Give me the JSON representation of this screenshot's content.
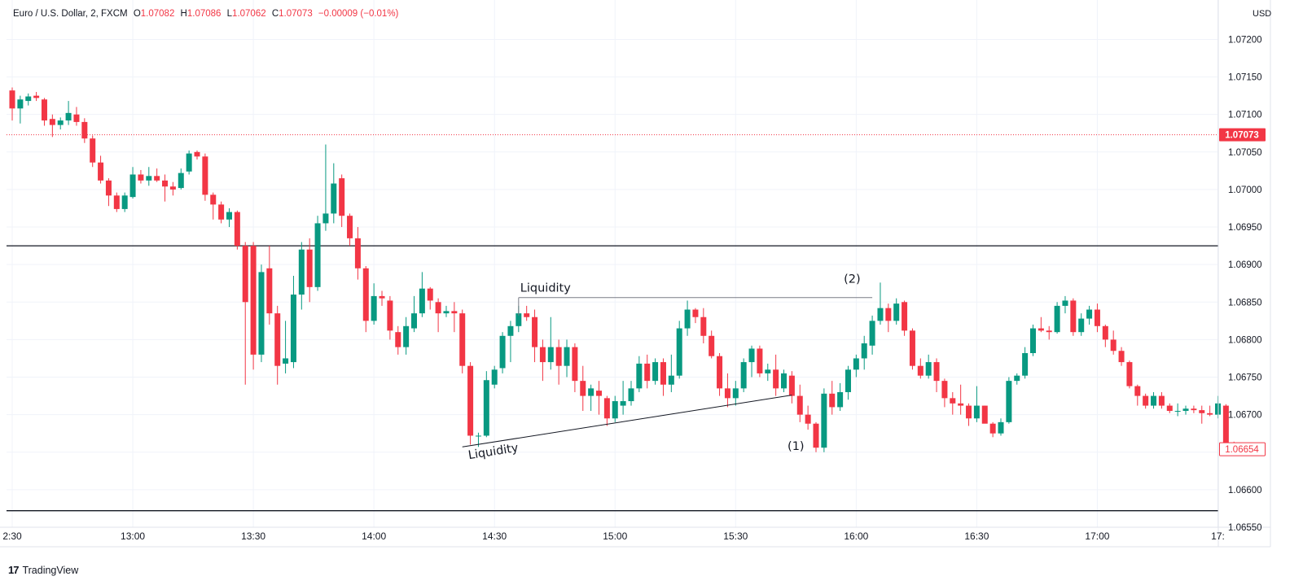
{
  "legend": {
    "title": "Euro / U.S. Dollar, 2, FXCM",
    "open_label": "O",
    "open": "1.07082",
    "high_label": "H",
    "high": "1.07086",
    "low_label": "L",
    "low": "1.07062",
    "close_label": "C",
    "close": "1.07073",
    "change": "−0.00009 (−0.01%)"
  },
  "currency": "USD",
  "branding": "TradingView",
  "colors": {
    "up": "#089981",
    "down": "#f23645",
    "grid": "#f0f3fa",
    "line": "#131722"
  },
  "chart_data": {
    "type": "candlestick",
    "symbol": "Euro / U.S. Dollar, 2, FXCM",
    "ylim": [
      1.0655,
      1.0722
    ],
    "y_ticks": [
      "1.07200",
      "1.07150",
      "1.07100",
      "1.07050",
      "1.07000",
      "1.06950",
      "1.06900",
      "1.06850",
      "1.06800",
      "1.06750",
      "1.06700",
      "1.06650",
      "1.06600",
      "1.06550"
    ],
    "x_ticks": [
      {
        "label": "2:30",
        "i": 0
      },
      {
        "label": "13:00",
        "i": 15
      },
      {
        "label": "13:30",
        "i": 30
      },
      {
        "label": "14:00",
        "i": 45
      },
      {
        "label": "14:30",
        "i": 60
      },
      {
        "label": "15:00",
        "i": 75
      },
      {
        "label": "15:30",
        "i": 90
      },
      {
        "label": "16:00",
        "i": 105
      },
      {
        "label": "16:30",
        "i": 120
      },
      {
        "label": "17:00",
        "i": 135
      },
      {
        "label": "17:",
        "i": 150
      }
    ],
    "price_labels": [
      {
        "value": 1.07073,
        "text": "1.07073",
        "style": "filled"
      },
      {
        "value": 1.06654,
        "text": "1.06654",
        "style": "outline"
      }
    ],
    "horizontal_lines": [
      1.06925,
      1.06572
    ],
    "current_price_line": 1.07073,
    "annotations": [
      {
        "text": "Liquidity",
        "type": "horizontal-line",
        "price": 1.06856,
        "from_i": 63,
        "to_i": 107
      },
      {
        "text": "Liquidity",
        "type": "trend-line",
        "from": {
          "i": 56,
          "price": 1.06657
        },
        "to": {
          "i": 97,
          "price": 1.06726
        }
      },
      {
        "text": "(1)",
        "type": "label",
        "i": 97.5,
        "price": 1.06653
      },
      {
        "text": "(2)",
        "type": "label",
        "i": 104.5,
        "price": 1.06876
      }
    ],
    "candles": [
      [
        1.07132,
        1.07136,
        1.07092,
        1.07108
      ],
      [
        1.07108,
        1.07125,
        1.07088,
        1.0712
      ],
      [
        1.07118,
        1.07128,
        1.07112,
        1.07124
      ],
      [
        1.07125,
        1.0713,
        1.07118,
        1.07122
      ],
      [
        1.0712,
        1.07122,
        1.07085,
        1.07092
      ],
      [
        1.07094,
        1.071,
        1.0707,
        1.07086
      ],
      [
        1.07086,
        1.07096,
        1.0708,
        1.07092
      ],
      [
        1.07092,
        1.07118,
        1.07086,
        1.07102
      ],
      [
        1.071,
        1.0711,
        1.07085,
        1.0709
      ],
      [
        1.0709,
        1.07095,
        1.07062,
        1.07068
      ],
      [
        1.07068,
        1.07072,
        1.0703,
        1.07036
      ],
      [
        1.07036,
        1.07045,
        1.07008,
        1.07012
      ],
      [
        1.07012,
        1.07015,
        1.06978,
        1.06992
      ],
      [
        1.06992,
        1.06996,
        1.0697,
        1.06974
      ],
      [
        1.06974,
        1.06996,
        1.0697,
        1.06992
      ],
      [
        1.0699,
        1.0703,
        1.06988,
        1.0702
      ],
      [
        1.0702,
        1.07026,
        1.07008,
        1.07012
      ],
      [
        1.07012,
        1.0703,
        1.07005,
        1.07018
      ],
      [
        1.07018,
        1.07028,
        1.0701,
        1.07012
      ],
      [
        1.07012,
        1.0702,
        1.06984,
        1.07004
      ],
      [
        1.07004,
        1.0701,
        1.06992,
        1.07
      ],
      [
        1.07002,
        1.07028,
        1.07,
        1.07022
      ],
      [
        1.07024,
        1.07052,
        1.0702,
        1.07048
      ],
      [
        1.0705,
        1.07052,
        1.0704,
        1.07044
      ],
      [
        1.07044,
        1.07048,
        1.06985,
        1.06993
      ],
      [
        1.06993,
        1.06996,
        1.0696,
        1.0698
      ],
      [
        1.0698,
        1.06984,
        1.06955,
        1.0696
      ],
      [
        1.0696,
        1.06975,
        1.0695,
        1.0697
      ],
      [
        1.0697,
        1.06972,
        1.0692,
        1.06925
      ],
      [
        1.06925,
        1.0693,
        1.0674,
        1.0685
      ],
      [
        1.06925,
        1.0693,
        1.0676,
        1.0678
      ],
      [
        1.0678,
        1.069,
        1.0677,
        1.0689
      ],
      [
        1.06895,
        1.06925,
        1.0682,
        1.06835
      ],
      [
        1.06835,
        1.06845,
        1.0674,
        1.06765
      ],
      [
        1.06768,
        1.06825,
        1.06755,
        1.06775
      ],
      [
        1.0677,
        1.06885,
        1.06762,
        1.0686
      ],
      [
        1.0686,
        1.0693,
        1.0684,
        1.0692
      ],
      [
        1.0692,
        1.06935,
        1.0685,
        1.0687
      ],
      [
        1.0687,
        1.06965,
        1.06865,
        1.06955
      ],
      [
        1.06955,
        1.0706,
        1.06945,
        1.06968
      ],
      [
        1.06968,
        1.07035,
        1.06955,
        1.07008
      ],
      [
        1.07015,
        1.0702,
        1.0695,
        1.06965
      ],
      [
        1.06965,
        1.06968,
        1.06925,
        1.06935
      ],
      [
        1.06935,
        1.0695,
        1.0688,
        1.06895
      ],
      [
        1.06895,
        1.06898,
        1.0681,
        1.06825
      ],
      [
        1.06825,
        1.06875,
        1.0682,
        1.06858
      ],
      [
        1.06858,
        1.06865,
        1.06845,
        1.06855
      ],
      [
        1.06852,
        1.06858,
        1.068,
        1.06812
      ],
      [
        1.0681,
        1.06818,
        1.0678,
        1.0679
      ],
      [
        1.0679,
        1.0683,
        1.0678,
        1.06818
      ],
      [
        1.06815,
        1.06858,
        1.0681,
        1.06835
      ],
      [
        1.06835,
        1.0689,
        1.0683,
        1.06868
      ],
      [
        1.06868,
        1.0687,
        1.0684,
        1.06852
      ],
      [
        1.0685,
        1.06855,
        1.0681,
        1.06835
      ],
      [
        1.06835,
        1.06845,
        1.0683,
        1.06838
      ],
      [
        1.06838,
        1.0685,
        1.0681,
        1.06835
      ],
      [
        1.06835,
        1.0684,
        1.06755,
        1.06765
      ],
      [
        1.06765,
        1.0677,
        1.0666,
        1.06672
      ],
      [
        1.06672,
        1.06676,
        1.06657,
        1.06672
      ],
      [
        1.06672,
        1.06758,
        1.0667,
        1.06746
      ],
      [
        1.0674,
        1.06765,
        1.06735,
        1.0676
      ],
      [
        1.06762,
        1.0681,
        1.06755,
        1.06805
      ],
      [
        1.06805,
        1.06825,
        1.0677,
        1.06818
      ],
      [
        1.06818,
        1.06845,
        1.0681,
        1.06835
      ],
      [
        1.06835,
        1.06845,
        1.06825,
        1.0683
      ],
      [
        1.0683,
        1.0684,
        1.0677,
        1.0679
      ],
      [
        1.0679,
        1.068,
        1.06745,
        1.0677
      ],
      [
        1.0677,
        1.0683,
        1.0676,
        1.0679
      ],
      [
        1.0679,
        1.068,
        1.0674,
        1.06765
      ],
      [
        1.06765,
        1.068,
        1.0675,
        1.0679
      ],
      [
        1.0679,
        1.06795,
        1.0673,
        1.06745
      ],
      [
        1.06745,
        1.06765,
        1.06705,
        1.06725
      ],
      [
        1.06725,
        1.0674,
        1.06705,
        1.06735
      ],
      [
        1.06732,
        1.06745,
        1.067,
        1.06725
      ],
      [
        1.06722,
        1.06725,
        1.06685,
        1.06695
      ],
      [
        1.06695,
        1.06725,
        1.0669,
        1.06718
      ],
      [
        1.06712,
        1.06745,
        1.067,
        1.06718
      ],
      [
        1.06718,
        1.06745,
        1.06712,
        1.06735
      ],
      [
        1.06735,
        1.06778,
        1.0673,
        1.06768
      ],
      [
        1.06768,
        1.0678,
        1.06735,
        1.06745
      ],
      [
        1.06745,
        1.06775,
        1.0674,
        1.0677
      ],
      [
        1.0677,
        1.06775,
        1.06725,
        1.0674
      ],
      [
        1.0674,
        1.0678,
        1.0673,
        1.06752
      ],
      [
        1.06752,
        1.06825,
        1.06748,
        1.06815
      ],
      [
        1.06815,
        1.06852,
        1.06805,
        1.0684
      ],
      [
        1.0684,
        1.06842,
        1.06822,
        1.0683
      ],
      [
        1.0683,
        1.06842,
        1.06795,
        1.06805
      ],
      [
        1.06805,
        1.06812,
        1.06775,
        1.06778
      ],
      [
        1.06778,
        1.06782,
        1.06725,
        1.06735
      ],
      [
        1.06735,
        1.06755,
        1.0671,
        1.06722
      ],
      [
        1.06722,
        1.06745,
        1.06712,
        1.06735
      ],
      [
        1.06735,
        1.06775,
        1.0673,
        1.0677
      ],
      [
        1.0677,
        1.06792,
        1.0675,
        1.06788
      ],
      [
        1.06788,
        1.06792,
        1.0675,
        1.06755
      ],
      [
        1.06755,
        1.06768,
        1.06745,
        1.0676
      ],
      [
        1.0676,
        1.0678,
        1.06725,
        1.06735
      ],
      [
        1.06735,
        1.0676,
        1.0673,
        1.06755
      ],
      [
        1.06752,
        1.06758,
        1.06715,
        1.06725
      ],
      [
        1.06725,
        1.0674,
        1.0669,
        1.067
      ],
      [
        1.067,
        1.06712,
        1.0668,
        1.06688
      ],
      [
        1.06688,
        1.0669,
        1.0665,
        1.06656
      ],
      [
        1.06656,
        1.06735,
        1.0665,
        1.06728
      ],
      [
        1.06728,
        1.06745,
        1.067,
        1.0671
      ],
      [
        1.0671,
        1.06742,
        1.06705,
        1.0673
      ],
      [
        1.0673,
        1.06765,
        1.0672,
        1.0676
      ],
      [
        1.0676,
        1.0678,
        1.0675,
        1.06775
      ],
      [
        1.06775,
        1.06805,
        1.0676,
        1.06795
      ],
      [
        1.06792,
        1.06832,
        1.0678,
        1.06825
      ],
      [
        1.06825,
        1.06876,
        1.0682,
        1.06842
      ],
      [
        1.06842,
        1.06848,
        1.0681,
        1.06825
      ],
      [
        1.06825,
        1.06855,
        1.0682,
        1.06848
      ],
      [
        1.0685,
        1.06852,
        1.06805,
        1.06812
      ],
      [
        1.06812,
        1.06815,
        1.0676,
        1.06765
      ],
      [
        1.06765,
        1.06775,
        1.06748,
        1.06752
      ],
      [
        1.06752,
        1.0678,
        1.06748,
        1.0677
      ],
      [
        1.0677,
        1.06775,
        1.0673,
        1.06745
      ],
      [
        1.06745,
        1.06748,
        1.0671,
        1.06722
      ],
      [
        1.06722,
        1.0673,
        1.067,
        1.06715
      ],
      [
        1.06715,
        1.0674,
        1.067,
        1.06712
      ],
      [
        1.06712,
        1.06715,
        1.06685,
        1.06695
      ],
      [
        1.06695,
        1.06738,
        1.0669,
        1.06712
      ],
      [
        1.06712,
        1.06712,
        1.0669,
        1.06688
      ],
      [
        1.06688,
        1.0669,
        1.0667,
        1.06675
      ],
      [
        1.06675,
        1.06695,
        1.06672,
        1.0669
      ],
      [
        1.0669,
        1.0675,
        1.06688,
        1.06745
      ],
      [
        1.06745,
        1.06755,
        1.0674,
        1.06752
      ],
      [
        1.06752,
        1.0679,
        1.06748,
        1.06782
      ],
      [
        1.06782,
        1.0682,
        1.06778,
        1.06815
      ],
      [
        1.06815,
        1.0683,
        1.0681,
        1.06812
      ],
      [
        1.06812,
        1.06818,
        1.068,
        1.0681
      ],
      [
        1.0681,
        1.0685,
        1.06808,
        1.06845
      ],
      [
        1.06845,
        1.06858,
        1.06835,
        1.06852
      ],
      [
        1.06852,
        1.06855,
        1.06805,
        1.0681
      ],
      [
        1.0681,
        1.06835,
        1.06805,
        1.06828
      ],
      [
        1.06828,
        1.06845,
        1.0682,
        1.0684
      ],
      [
        1.0684,
        1.06848,
        1.0681,
        1.06818
      ],
      [
        1.06818,
        1.0682,
        1.0679,
        1.068
      ],
      [
        1.068,
        1.06812,
        1.0678,
        1.06785
      ],
      [
        1.06785,
        1.0679,
        1.06765,
        1.0677
      ],
      [
        1.0677,
        1.06772,
        1.06735,
        1.06738
      ],
      [
        1.06738,
        1.0674,
        1.06712,
        1.06725
      ],
      [
        1.06725,
        1.06728,
        1.06708,
        1.06712
      ],
      [
        1.06712,
        1.0673,
        1.06708,
        1.06725
      ],
      [
        1.06725,
        1.0673,
        1.06708,
        1.06712
      ],
      [
        1.06712,
        1.06715,
        1.06702,
        1.06705
      ],
      [
        1.06705,
        1.06715,
        1.06698,
        1.06705
      ],
      [
        1.06705,
        1.06712,
        1.067,
        1.06708
      ],
      [
        1.06708,
        1.06712,
        1.06702,
        1.06706
      ],
      [
        1.06706,
        1.06712,
        1.06688,
        1.06702
      ],
      [
        1.06702,
        1.06712,
        1.06698,
        1.067
      ],
      [
        1.067,
        1.06725,
        1.06695,
        1.06715
      ],
      [
        1.06712,
        1.06714,
        1.06654,
        1.06662
      ],
      [
        1.06662,
        1.06664,
        1.0665,
        1.06654
      ]
    ]
  }
}
